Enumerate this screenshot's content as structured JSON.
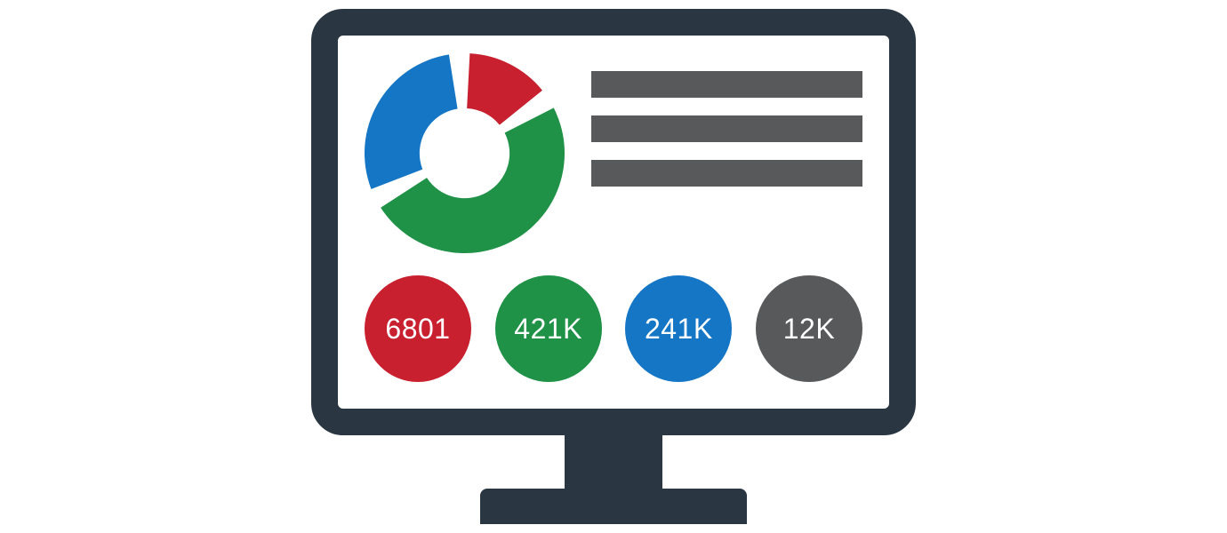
{
  "frame_color": "#2a3642",
  "bar_color": "#58595b",
  "donut": {
    "type": "donut",
    "outer_radius": 100,
    "inner_radius": 45,
    "gap_deg": 6,
    "slices": [
      {
        "name": "green",
        "color": "#1f9247",
        "start_deg": 60,
        "sweep_deg": 180
      },
      {
        "name": "blue",
        "color": "#1576c6",
        "start_deg": 246,
        "sweep_deg": 108
      },
      {
        "name": "red",
        "color": "#c8202f",
        "start_deg": 0,
        "sweep_deg": 54
      }
    ]
  },
  "bars": {
    "count": 3
  },
  "metrics": [
    {
      "label": "6801",
      "color": "#c8202f"
    },
    {
      "label": "421K",
      "color": "#1f9247"
    },
    {
      "label": "241K",
      "color": "#1576c6"
    },
    {
      "label": "12K",
      "color": "#58595b"
    }
  ]
}
